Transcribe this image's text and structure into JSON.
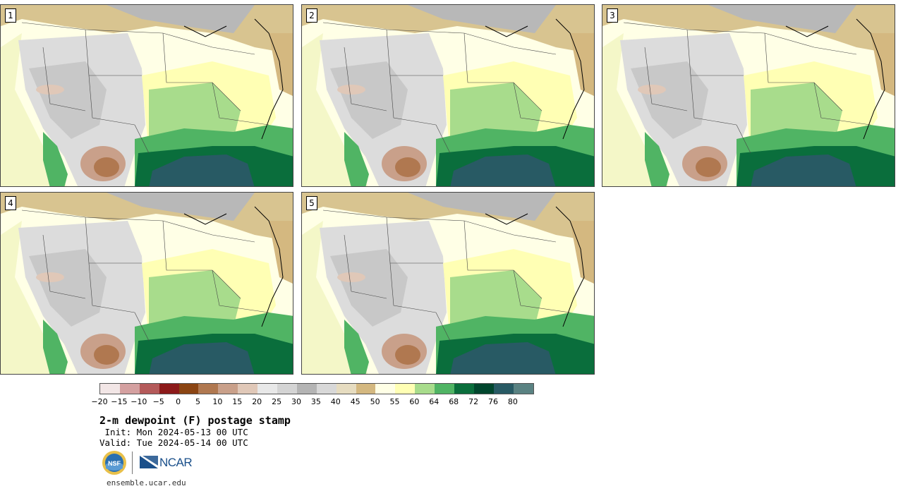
{
  "panels": [
    {
      "label": "1"
    },
    {
      "label": "2"
    },
    {
      "label": "3"
    },
    {
      "label": "4"
    },
    {
      "label": "5"
    }
  ],
  "colorbar": {
    "colors": [
      "#f2e6e6",
      "#d4a0a0",
      "#b45a5a",
      "#8c1a1a",
      "#8b4513",
      "#b07850",
      "#c9a08a",
      "#e0c8b8",
      "#e8e8e8",
      "#d4d4d4",
      "#b4b4b4",
      "#d8d8d8",
      "#e6dcc0",
      "#d4b880",
      "#ffffe6",
      "#ffffb4",
      "#a8dc8c",
      "#50b464",
      "#0a6e3c",
      "#00462d",
      "#285a64",
      "#5a8282"
    ],
    "ticks": [
      "−20",
      "−15",
      "−10",
      "−5",
      "0",
      "5",
      "10",
      "15",
      "20",
      "25",
      "30",
      "35",
      "40",
      "45",
      "50",
      "55",
      "60",
      "64",
      "68",
      "72",
      "76",
      "80"
    ]
  },
  "title": "2-m dewpoint (F) postage stamp",
  "init": " Init: Mon 2024-05-13 00 UTC",
  "valid": "Valid: Tue 2024-05-14 00 UTC",
  "logo": {
    "nsf": "NSF",
    "ncar": "NCAR"
  },
  "url": "ensemble.ucar.edu"
}
